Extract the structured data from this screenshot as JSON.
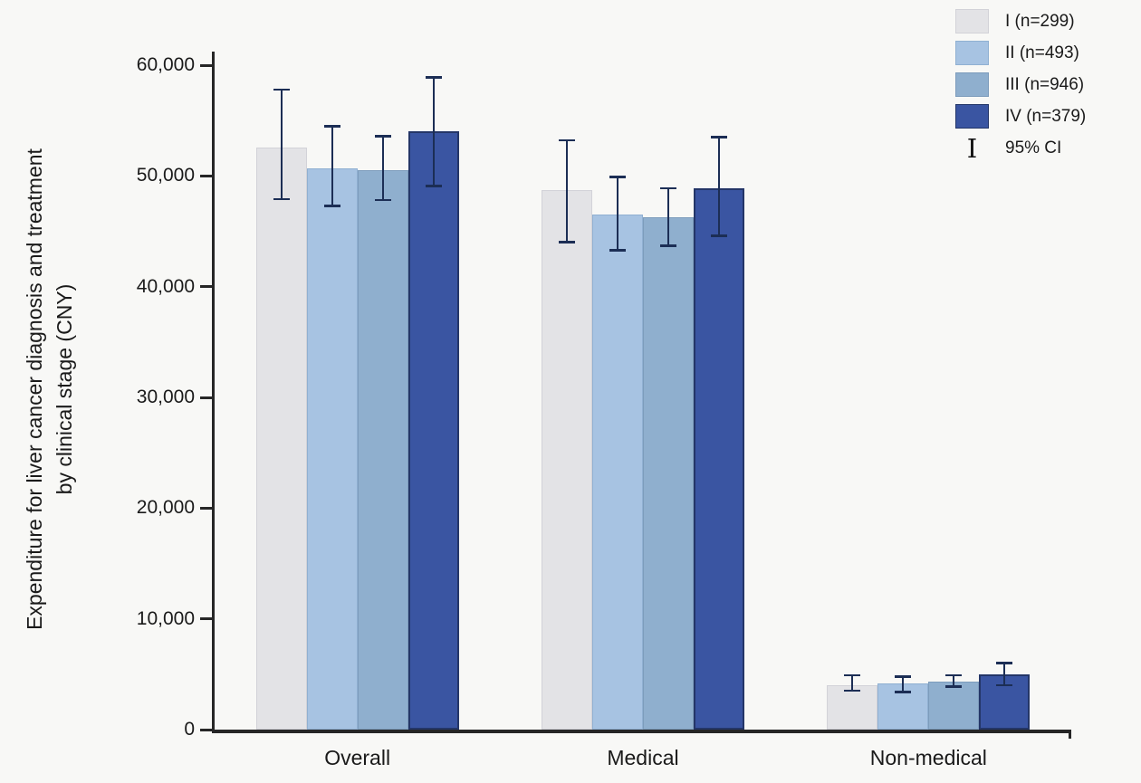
{
  "figure": {
    "background": "#f8f8f6",
    "axis_color": "#262626",
    "text_color": "#1a1a1a",
    "error_bar_color": "#1c2e55",
    "ylabel_line1": "Expenditure for liver cancer diagnosis and treatment",
    "ylabel_line2": "by clinical stage (CNY)",
    "ci_symbol": "I"
  },
  "chart_data": {
    "type": "bar",
    "title": "",
    "xlabel": "",
    "ylabel": "Expenditure for liver cancer diagnosis and treatment by clinical stage (CNY)",
    "categories": [
      "Overall",
      "Medical",
      "Non-medical"
    ],
    "series": [
      {
        "name": "I (n=299)",
        "stage": "I",
        "n": 299,
        "color": "#e3e3e6",
        "edge": "#d2d2d8",
        "values": [
          52600,
          48700,
          4000
        ],
        "ci_low": [
          47900,
          44000,
          3500
        ],
        "ci_high": [
          57800,
          53200,
          4900
        ]
      },
      {
        "name": "II (n=493)",
        "stage": "II",
        "n": 493,
        "color": "#a7c3e2",
        "edge": "#90b0d2",
        "values": [
          50700,
          46500,
          4200
        ],
        "ci_low": [
          47300,
          43300,
          3400
        ],
        "ci_high": [
          54500,
          49900,
          4800
        ]
      },
      {
        "name": "III (n=946)",
        "stage": "III",
        "n": 946,
        "color": "#8fafce",
        "edge": "#7d9cbc",
        "values": [
          50500,
          46300,
          4300
        ],
        "ci_low": [
          47800,
          43700,
          3900
        ],
        "ci_high": [
          53600,
          48900,
          4900
        ]
      },
      {
        "name": "IV (n=379)",
        "stage": "IV",
        "n": 379,
        "color": "#3a55a2",
        "edge": "#243668",
        "values": [
          54000,
          48900,
          5000
        ],
        "ci_low": [
          49100,
          44600,
          4000
        ],
        "ci_high": [
          58900,
          53500,
          6000
        ]
      }
    ],
    "error_bars": "95% CI",
    "ci_legend_label": "95% CI",
    "ylim": [
      0,
      60000
    ],
    "yticks": [
      0,
      10000,
      20000,
      30000,
      40000,
      50000,
      60000
    ],
    "ytick_labels": [
      "0",
      "10,000",
      "20,000",
      "30,000",
      "40,000",
      "50,000",
      "60,000"
    ],
    "grid": false,
    "legend_position": "top-right"
  }
}
